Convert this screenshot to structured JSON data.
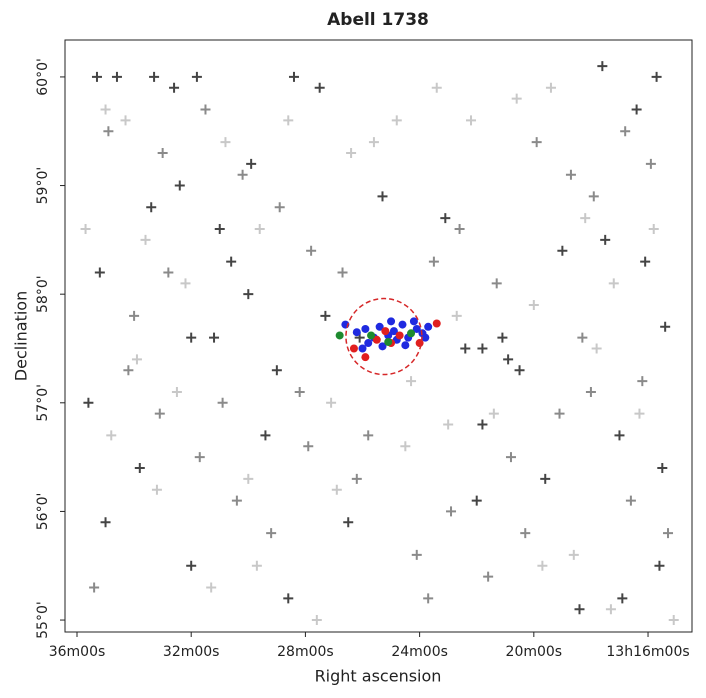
{
  "chart_data": {
    "type": "scatter",
    "title": "Abell 1738",
    "x_label": "Right ascension",
    "y_label": "Declination",
    "xlim": [
      36.42,
      14.46
    ],
    "ylim": [
      54.89,
      60.34
    ],
    "xticks": [
      {
        "value": 36,
        "label": "36m00s"
      },
      {
        "value": 32,
        "label": "32m00s"
      },
      {
        "value": 28,
        "label": "28m00s"
      },
      {
        "value": 24,
        "label": "24m00s"
      },
      {
        "value": 20,
        "label": "20m00s"
      },
      {
        "value": 16,
        "label": "13h16m00s"
      }
    ],
    "yticks": [
      {
        "value": 55,
        "label": "55°0'"
      },
      {
        "value": 56,
        "label": "56°0'"
      },
      {
        "value": 57,
        "label": "57°0'"
      },
      {
        "value": 58,
        "label": "58°0'"
      },
      {
        "value": 59,
        "label": "59°0'"
      },
      {
        "value": 60,
        "label": "60°0'"
      }
    ],
    "series": [
      {
        "color": "#444444",
        "marker": "cross",
        "x": [
          35.3,
          34.6,
          33.3,
          32.6,
          31.8,
          29.9,
          28.4,
          27.5,
          35.2,
          33.4,
          32.4,
          31.0,
          30.6,
          30.0,
          32.0,
          31.2,
          29.0,
          27.3,
          26.1,
          21.8,
          21.1,
          20.5,
          19.0,
          17.5,
          16.1,
          15.4,
          17.0,
          19.6,
          21.8,
          33.8,
          35.0,
          32.0,
          28.6,
          26.5,
          22.0,
          18.4,
          16.9,
          15.6,
          15.5,
          17.6,
          16.4,
          15.7,
          35.6,
          29.4,
          25.3,
          23.1,
          22.4,
          20.9
        ],
        "y": [
          60.0,
          60.0,
          60.0,
          59.9,
          60.0,
          59.2,
          60.0,
          59.9,
          58.2,
          58.8,
          59.0,
          58.6,
          58.3,
          58.0,
          57.6,
          57.6,
          57.3,
          57.8,
          57.6,
          57.5,
          57.6,
          57.3,
          58.4,
          58.5,
          58.3,
          57.7,
          56.7,
          56.3,
          56.8,
          56.4,
          55.9,
          55.5,
          55.2,
          55.9,
          56.1,
          55.1,
          55.2,
          55.5,
          56.4,
          60.1,
          59.7,
          60.0,
          57.0,
          56.7,
          58.9,
          58.7,
          57.5,
          57.4
        ]
      },
      {
        "color": "#8a8a8a",
        "marker": "cross",
        "x": [
          34.9,
          33.0,
          31.5,
          30.2,
          28.9,
          27.8,
          26.7,
          23.5,
          22.6,
          21.3,
          19.9,
          18.7,
          17.9,
          16.8,
          15.9,
          34.2,
          33.1,
          31.7,
          30.4,
          29.2,
          27.9,
          26.2,
          24.1,
          22.9,
          21.6,
          20.3,
          19.1,
          18.0,
          16.6,
          15.3,
          35.4,
          34.0,
          32.8,
          30.9,
          28.2,
          25.8,
          23.7,
          20.8,
          18.3,
          16.2
        ],
        "y": [
          59.5,
          59.3,
          59.7,
          59.1,
          58.8,
          58.4,
          58.2,
          58.3,
          58.6,
          58.1,
          59.4,
          59.1,
          58.9,
          59.5,
          59.2,
          57.3,
          56.9,
          56.5,
          56.1,
          55.8,
          56.6,
          56.3,
          55.6,
          56.0,
          55.4,
          55.8,
          56.9,
          57.1,
          56.1,
          55.8,
          55.3,
          57.8,
          58.2,
          57.0,
          57.1,
          56.7,
          55.2,
          56.5,
          57.6,
          57.2
        ]
      },
      {
        "color": "#c8c8c8",
        "marker": "cross",
        "x": [
          35.0,
          34.3,
          33.6,
          32.2,
          30.8,
          29.6,
          28.6,
          26.4,
          25.6,
          24.8,
          23.4,
          22.2,
          20.6,
          19.4,
          18.2,
          17.2,
          15.8,
          34.8,
          33.2,
          31.3,
          29.7,
          27.6,
          26.9,
          24.5,
          23.0,
          21.4,
          19.7,
          18.6,
          17.3,
          15.1,
          35.7,
          33.9,
          32.5,
          30.0,
          27.1,
          24.3,
          22.7,
          20.0,
          17.8,
          16.3
        ],
        "y": [
          59.7,
          59.6,
          58.5,
          58.1,
          59.4,
          58.6,
          59.6,
          59.3,
          59.4,
          59.6,
          59.9,
          59.6,
          59.8,
          59.9,
          58.7,
          58.1,
          58.6,
          56.7,
          56.2,
          55.3,
          55.5,
          55.0,
          56.2,
          56.6,
          56.8,
          56.9,
          55.5,
          55.6,
          55.1,
          55.0,
          58.6,
          57.4,
          57.1,
          56.3,
          57.0,
          57.2,
          57.8,
          57.9,
          57.5,
          56.9
        ]
      },
      {
        "color": "#1f2ae0",
        "marker": "dot",
        "x": [
          26.6,
          26.2,
          25.9,
          25.6,
          25.4,
          25.1,
          24.9,
          24.6,
          24.4,
          24.1,
          23.9,
          23.7,
          25.8,
          25.3,
          24.8,
          24.2,
          26.0,
          25.0,
          24.5,
          23.8
        ],
        "y": [
          57.72,
          57.65,
          57.68,
          57.6,
          57.7,
          57.62,
          57.66,
          57.72,
          57.6,
          57.68,
          57.64,
          57.7,
          57.55,
          57.52,
          57.58,
          57.75,
          57.5,
          57.75,
          57.53,
          57.6
        ]
      },
      {
        "color": "#e01f1f",
        "marker": "dot",
        "x": [
          26.3,
          25.9,
          25.5,
          25.0,
          24.7,
          24.0,
          23.4,
          25.2
        ],
        "y": [
          57.5,
          57.42,
          57.58,
          57.55,
          57.62,
          57.55,
          57.73,
          57.66
        ]
      },
      {
        "color": "#1e8a2e",
        "marker": "dot",
        "x": [
          26.8,
          25.7,
          25.1,
          24.3
        ],
        "y": [
          57.62,
          57.62,
          57.56,
          57.64
        ]
      }
    ],
    "circle": {
      "x": 25.25,
      "y": 57.61,
      "rx": 1.33,
      "ry": 0.35,
      "color": "#d62728"
    }
  }
}
